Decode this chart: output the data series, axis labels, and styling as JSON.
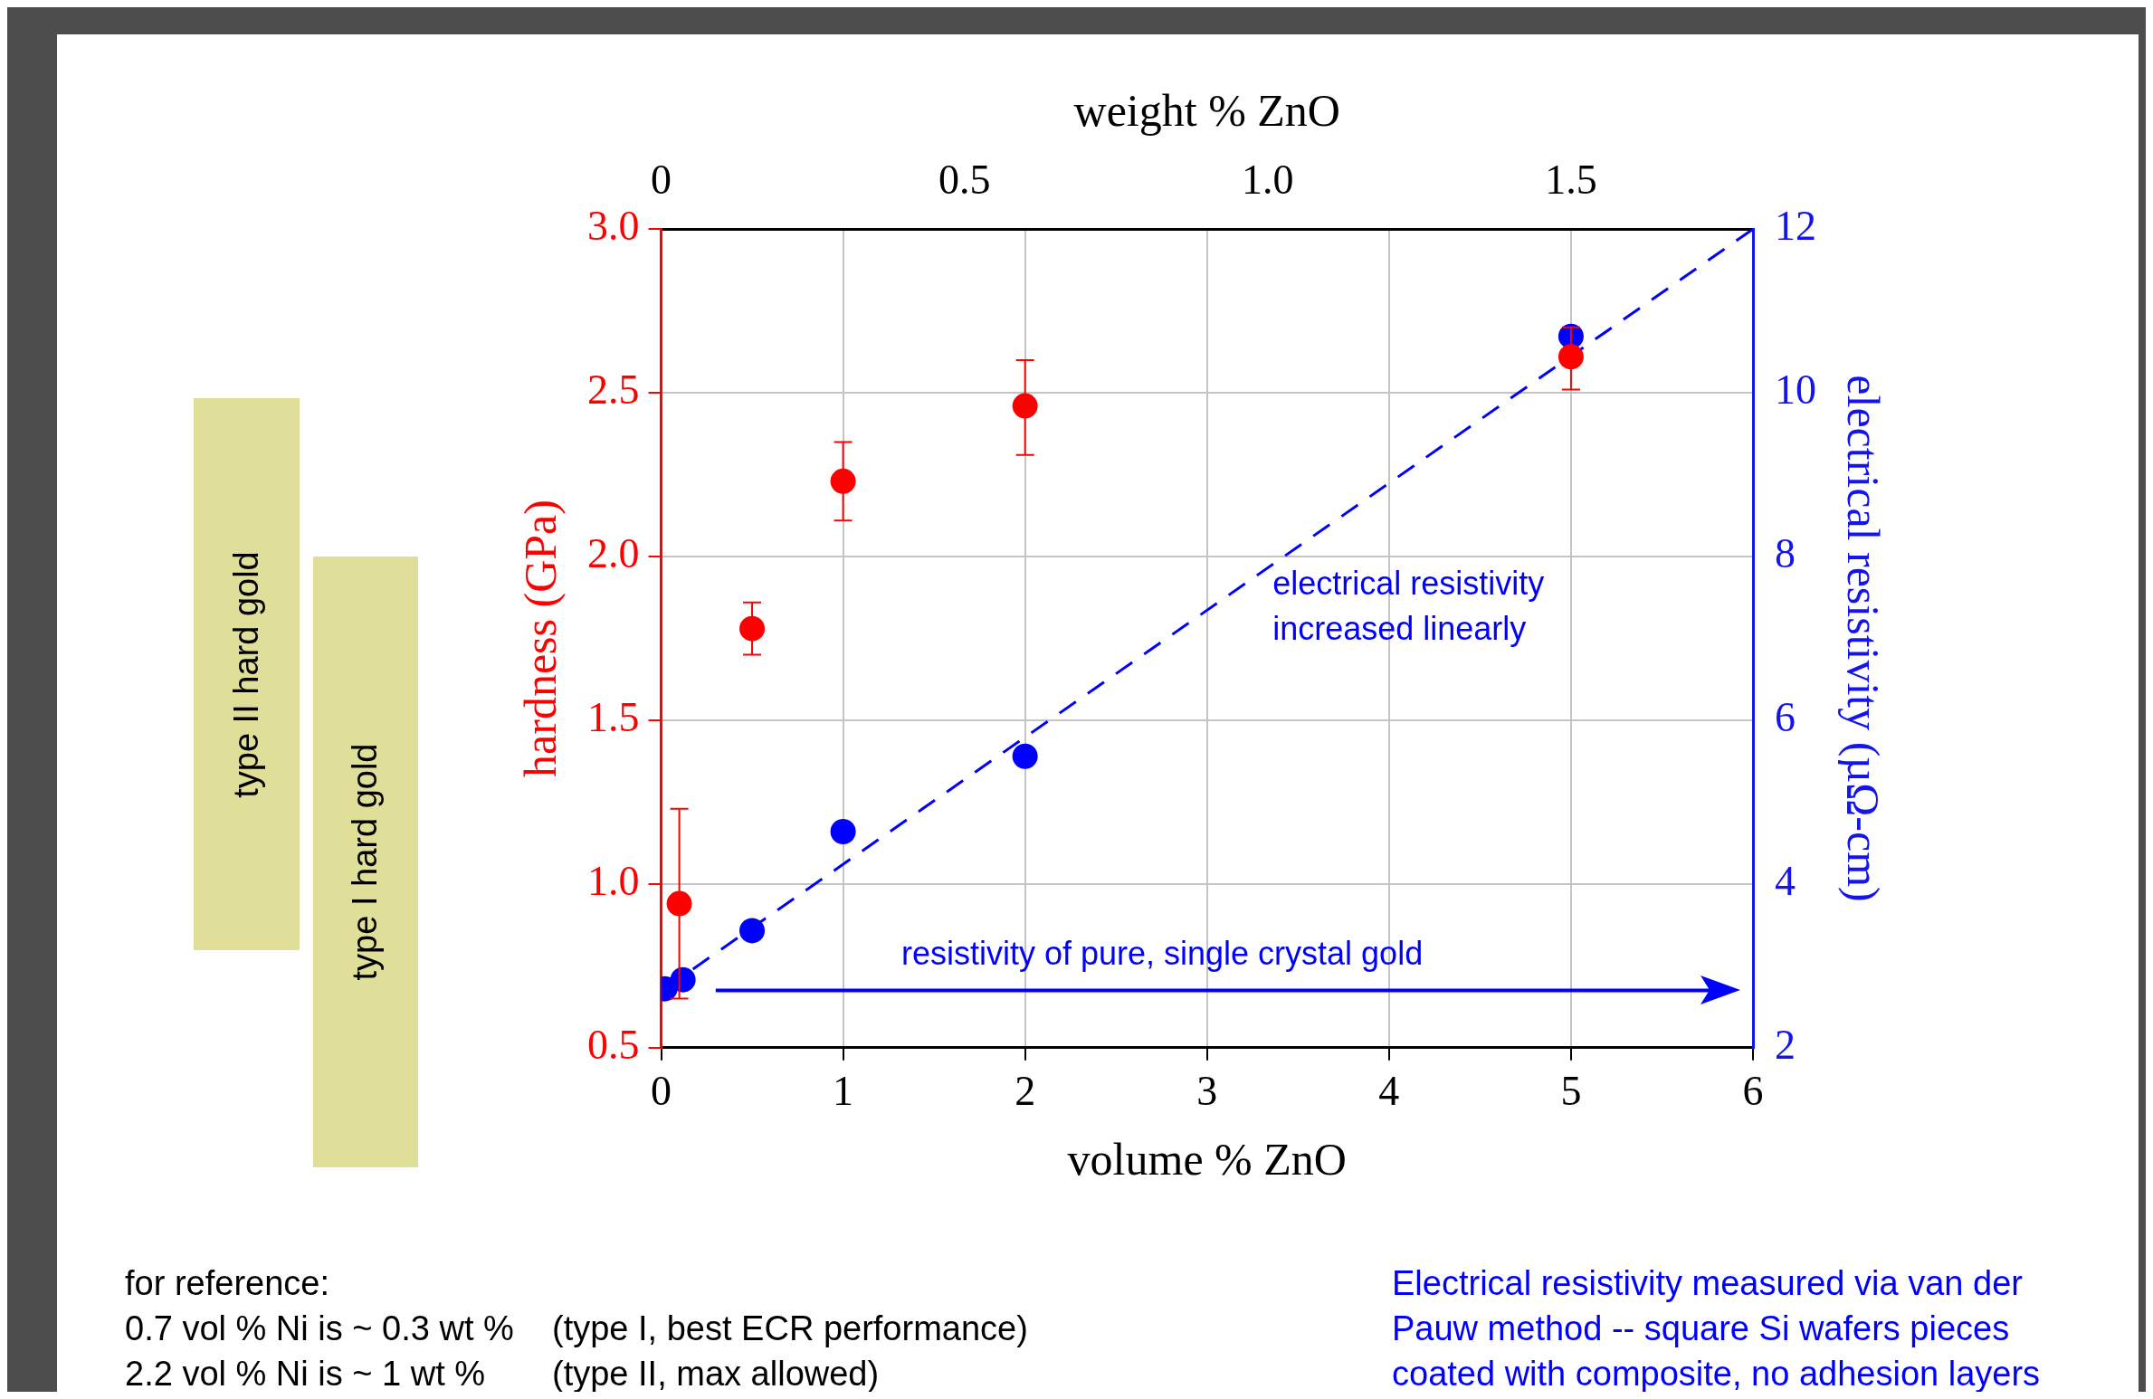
{
  "chart_data": {
    "type": "scatter",
    "xlabel": "volume % ZnO",
    "ylabel": "hardness (GPa)",
    "y2label": "electrical resistivity (µΩ-cm)",
    "x2label": "weight % ZnO",
    "xlim": [
      0,
      6
    ],
    "xticks": [
      0,
      1,
      2,
      3,
      4,
      5,
      6
    ],
    "x2lim": [
      0,
      1.8
    ],
    "x2ticks": [
      0,
      0.5,
      {
        "value": 1,
        "label": "1.0"
      },
      1.5
    ],
    "ylim": [
      0.5,
      3
    ],
    "yticks": [
      0.5,
      {
        "value": 1,
        "label": "1.0"
      },
      1.5,
      {
        "value": 2,
        "label": "2.0"
      },
      2.5,
      {
        "value": 3,
        "label": "3.0"
      }
    ],
    "y2lim": [
      2,
      12
    ],
    "y2ticks": [
      2,
      4,
      6,
      8,
      10,
      12
    ],
    "grid": true,
    "legend": false,
    "marker": "circle",
    "series": [
      {
        "color": "#ff0000",
        "x": [
          0.1,
          0.5,
          1,
          2,
          5
        ],
        "values": [
          0.94,
          1.78,
          2.23,
          2.46,
          2.61
        ],
        "errors": [
          [
            0.65,
            1.23
          ],
          [
            1.7,
            1.86
          ],
          [
            2.11,
            2.35
          ],
          [
            2.31,
            2.6
          ],
          [
            2.51,
            2.7
          ]
        ]
      },
      {
        "color": "#0000ff",
        "axis": "y2",
        "x": [
          0.02,
          0.12,
          0.5,
          1,
          2,
          5
        ],
        "values": [
          2.72,
          2.83,
          3.43,
          4.64,
          5.56,
          10.69
        ]
      },
      {
        "type": "line",
        "color": "#0000ff",
        "axis": "y2",
        "line_style": "dashed",
        "marker": "none",
        "x": [
          0.02,
          6
        ],
        "values": [
          2.72,
          12
        ]
      }
    ],
    "ref_lines": [
      {
        "axis": "y2",
        "value": 2.7,
        "label": "resistivity of pure, single crystal gold",
        "color": "#0000ff"
      }
    ],
    "annotations": [
      "electrical resistivity increased linearly",
      "for reference:\n0.7 vol % Ni is ~ 0.3 wt %    (type I, best ECR performance)\n2.2 vol % Ni is ~ 1 wt %       (type II, max allowed)",
      "Electrical resistivity measured via van der Pauw method -- square Si wafers pieces coated with composite, no adhesion layers",
      "type II hard gold",
      "type I hard gold"
    ]
  }
}
